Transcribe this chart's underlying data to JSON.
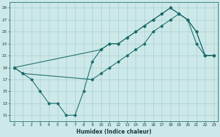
{
  "xlabel": "Humidex (Indice chaleur)",
  "xlim": [
    -0.5,
    23.5
  ],
  "ylim": [
    10,
    30
  ],
  "yticks": [
    11,
    13,
    15,
    17,
    19,
    21,
    23,
    25,
    27,
    29
  ],
  "xticks": [
    0,
    1,
    2,
    3,
    4,
    5,
    6,
    7,
    8,
    9,
    10,
    11,
    12,
    13,
    14,
    15,
    16,
    17,
    18,
    19,
    20,
    21,
    22,
    23
  ],
  "background_color": "#cde8e8",
  "grid_color": "#a0c8c8",
  "line_color": "#1a6b6b",
  "line1_x": [
    0,
    1,
    2,
    3,
    4,
    5,
    6,
    7,
    8,
    9,
    10,
    11,
    12,
    13,
    14,
    15,
    16,
    17,
    18,
    19,
    20,
    21,
    22,
    23
  ],
  "line1_y": [
    19,
    18,
    17,
    15,
    13,
    13,
    11,
    11,
    15,
    20,
    22,
    23,
    23,
    24,
    25,
    26,
    27,
    28,
    29,
    28,
    27,
    23,
    21,
    21
  ],
  "line2_x": [
    0,
    10,
    11,
    12,
    13,
    14,
    15,
    16,
    17,
    18,
    19,
    20,
    21,
    22,
    23
  ],
  "line2_y": [
    19,
    22,
    23,
    23,
    24,
    25,
    26,
    27,
    28,
    29,
    28,
    27,
    25,
    21,
    21
  ],
  "line3_x": [
    0,
    1,
    9,
    10,
    11,
    12,
    13,
    14,
    15,
    16,
    17,
    18,
    19,
    20,
    21,
    22,
    23
  ],
  "line3_y": [
    19,
    18,
    17,
    18,
    19,
    20,
    21,
    22,
    23,
    25,
    26,
    27,
    28,
    27,
    25,
    21,
    21
  ]
}
